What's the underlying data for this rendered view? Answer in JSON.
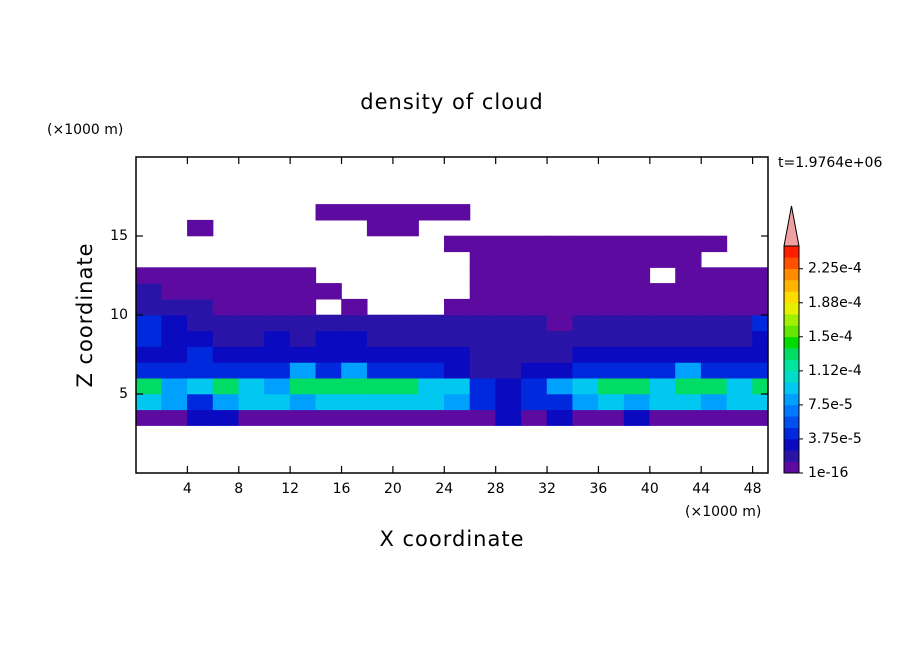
{
  "chart_data": {
    "type": "contour",
    "title": "density of cloud",
    "x_label": "X coordinate",
    "y_label": "Z coordinate",
    "x_unit": "(×1000 m)",
    "y_unit": "(×1000 m)",
    "annotation": "t=1.9764e+06",
    "xlim": [
      0,
      49.2
    ],
    "ylim": [
      0,
      20
    ],
    "xticks": [
      4,
      8,
      12,
      16,
      20,
      24,
      28,
      32,
      36,
      40,
      44,
      48
    ],
    "yticks": [
      5,
      10,
      15
    ],
    "clim": [
      1e-16,
      0.00025
    ],
    "cticks": [
      {
        "value": 1e-16,
        "label": "1e-16"
      },
      {
        "value": 3.75e-05,
        "label": "3.75e-5"
      },
      {
        "value": 7.5e-05,
        "label": "7.5e-5"
      },
      {
        "value": 0.0001125,
        "label": "1.12e-4"
      },
      {
        "value": 0.00015,
        "label": "1.5e-4"
      },
      {
        "value": 0.0001875,
        "label": "1.88e-4"
      },
      {
        "value": 0.000225,
        "label": "2.25e-4"
      }
    ],
    "colors": [
      "#5c0aa0",
      "#2a14a8",
      "#0a0ac0",
      "#0028dc",
      "#0050f0",
      "#0078ff",
      "#00a0ff",
      "#00c8f0",
      "#00dcc8",
      "#00e6a0",
      "#00dc64",
      "#00dc00",
      "#64e600",
      "#a0f000",
      "#e6f000",
      "#ffdc00",
      "#ffb400",
      "#ff8c00",
      "#ff5000",
      "#ff1e00"
    ],
    "over_color": "#f0a0a0",
    "x": [
      1,
      3,
      5,
      7,
      9,
      11,
      13,
      15,
      17,
      19,
      21,
      23,
      25,
      27,
      29,
      31,
      33,
      35,
      37,
      39,
      41,
      43,
      45,
      47,
      49
    ],
    "y": [
      3.5,
      4.5,
      5.5,
      6.5,
      7.5,
      8.5,
      9.5,
      10.5,
      11.5,
      12.5,
      13.5,
      14.5,
      15.5,
      16.5
    ],
    "z": [
      [
        5e-06,
        5e-06,
        3e-05,
        3e-05,
        5e-06,
        5e-06,
        5e-06,
        5e-06,
        5e-06,
        5e-06,
        5e-06,
        5e-06,
        5e-06,
        5e-06,
        3e-05,
        5e-06,
        3e-05,
        5e-06,
        5e-06,
        3e-05,
        5e-06,
        5e-06,
        5e-06,
        5e-06,
        5e-06
      ],
      [
        0.0001,
        8e-05,
        5e-05,
        8e-05,
        0.0001,
        0.0001,
        8e-05,
        0.0001,
        0.0001,
        0.0001,
        0.0001,
        0.0001,
        8e-05,
        5e-05,
        3e-05,
        5e-05,
        5e-05,
        8e-05,
        0.0001,
        8e-05,
        0.0001,
        0.0001,
        8e-05,
        0.0001,
        0.0001
      ],
      [
        0.00013,
        8e-05,
        0.0001,
        0.00013,
        0.0001,
        8e-05,
        0.00013,
        0.00013,
        0.00013,
        0.00013,
        0.00013,
        0.0001,
        0.0001,
        5e-05,
        3e-05,
        5e-05,
        8e-05,
        0.0001,
        0.00013,
        0.00013,
        0.0001,
        0.00013,
        0.00013,
        0.0001,
        0.00013
      ],
      [
        5e-05,
        5e-05,
        5e-05,
        5e-05,
        5e-05,
        5e-05,
        8e-05,
        5e-05,
        8e-05,
        5e-05,
        5e-05,
        5e-05,
        3e-05,
        2e-05,
        2e-05,
        3e-05,
        3e-05,
        5e-05,
        5e-05,
        5e-05,
        5e-05,
        8e-05,
        5e-05,
        5e-05,
        5e-05
      ],
      [
        3e-05,
        3e-05,
        5e-05,
        3e-05,
        3e-05,
        3e-05,
        3e-05,
        3e-05,
        3e-05,
        3e-05,
        3e-05,
        3e-05,
        3e-05,
        2e-05,
        2e-05,
        2e-05,
        2e-05,
        3e-05,
        3e-05,
        3e-05,
        3e-05,
        3e-05,
        3e-05,
        3e-05,
        3e-05
      ],
      [
        5e-05,
        3e-05,
        3e-05,
        2e-05,
        2e-05,
        3e-05,
        2e-05,
        3e-05,
        3e-05,
        2e-05,
        2e-05,
        2e-05,
        2e-05,
        2e-05,
        2e-05,
        2e-05,
        2e-05,
        2e-05,
        2e-05,
        2e-05,
        2e-05,
        2e-05,
        2e-05,
        2e-05,
        3e-05
      ],
      [
        5e-05,
        3e-05,
        2e-05,
        2e-05,
        2e-05,
        2e-05,
        2e-05,
        2e-05,
        2e-05,
        2e-05,
        2e-05,
        2e-05,
        2e-05,
        2e-05,
        2e-05,
        2e-05,
        5e-06,
        2e-05,
        2e-05,
        2e-05,
        2e-05,
        2e-05,
        2e-05,
        2e-05,
        5e-05
      ],
      [
        2e-05,
        2e-05,
        2e-05,
        5e-06,
        5e-06,
        5e-06,
        5e-06,
        null,
        5e-06,
        null,
        null,
        null,
        5e-06,
        5e-06,
        5e-06,
        5e-06,
        5e-06,
        5e-06,
        5e-06,
        5e-06,
        5e-06,
        5e-06,
        5e-06,
        5e-06,
        5e-06
      ],
      [
        2e-05,
        5e-06,
        5e-06,
        5e-06,
        5e-06,
        5e-06,
        5e-06,
        5e-06,
        null,
        null,
        null,
        null,
        null,
        5e-06,
        5e-06,
        5e-06,
        5e-06,
        5e-06,
        5e-06,
        5e-06,
        5e-06,
        5e-06,
        5e-06,
        5e-06,
        5e-06
      ],
      [
        5e-06,
        5e-06,
        5e-06,
        5e-06,
        5e-06,
        5e-06,
        5e-06,
        null,
        null,
        null,
        null,
        null,
        null,
        5e-06,
        5e-06,
        5e-06,
        5e-06,
        5e-06,
        5e-06,
        5e-06,
        null,
        5e-06,
        5e-06,
        5e-06,
        5e-06
      ],
      [
        null,
        null,
        null,
        null,
        null,
        null,
        null,
        null,
        null,
        null,
        null,
        null,
        null,
        5e-06,
        5e-06,
        5e-06,
        5e-06,
        5e-06,
        5e-06,
        5e-06,
        5e-06,
        5e-06,
        null,
        null,
        null
      ],
      [
        null,
        null,
        null,
        null,
        null,
        null,
        null,
        null,
        null,
        null,
        null,
        null,
        5e-06,
        5e-06,
        5e-06,
        5e-06,
        5e-06,
        5e-06,
        5e-06,
        5e-06,
        5e-06,
        5e-06,
        5e-06,
        null,
        null
      ],
      [
        null,
        null,
        5e-06,
        null,
        null,
        null,
        null,
        null,
        null,
        5e-06,
        5e-06,
        null,
        null,
        null,
        null,
        null,
        null,
        null,
        null,
        null,
        null,
        null,
        null,
        null,
        null
      ],
      [
        null,
        null,
        null,
        null,
        null,
        null,
        null,
        5e-06,
        5e-06,
        5e-06,
        5e-06,
        5e-06,
        5e-06,
        null,
        null,
        null,
        null,
        null,
        null,
        null,
        null,
        null,
        null,
        null,
        null
      ]
    ]
  }
}
